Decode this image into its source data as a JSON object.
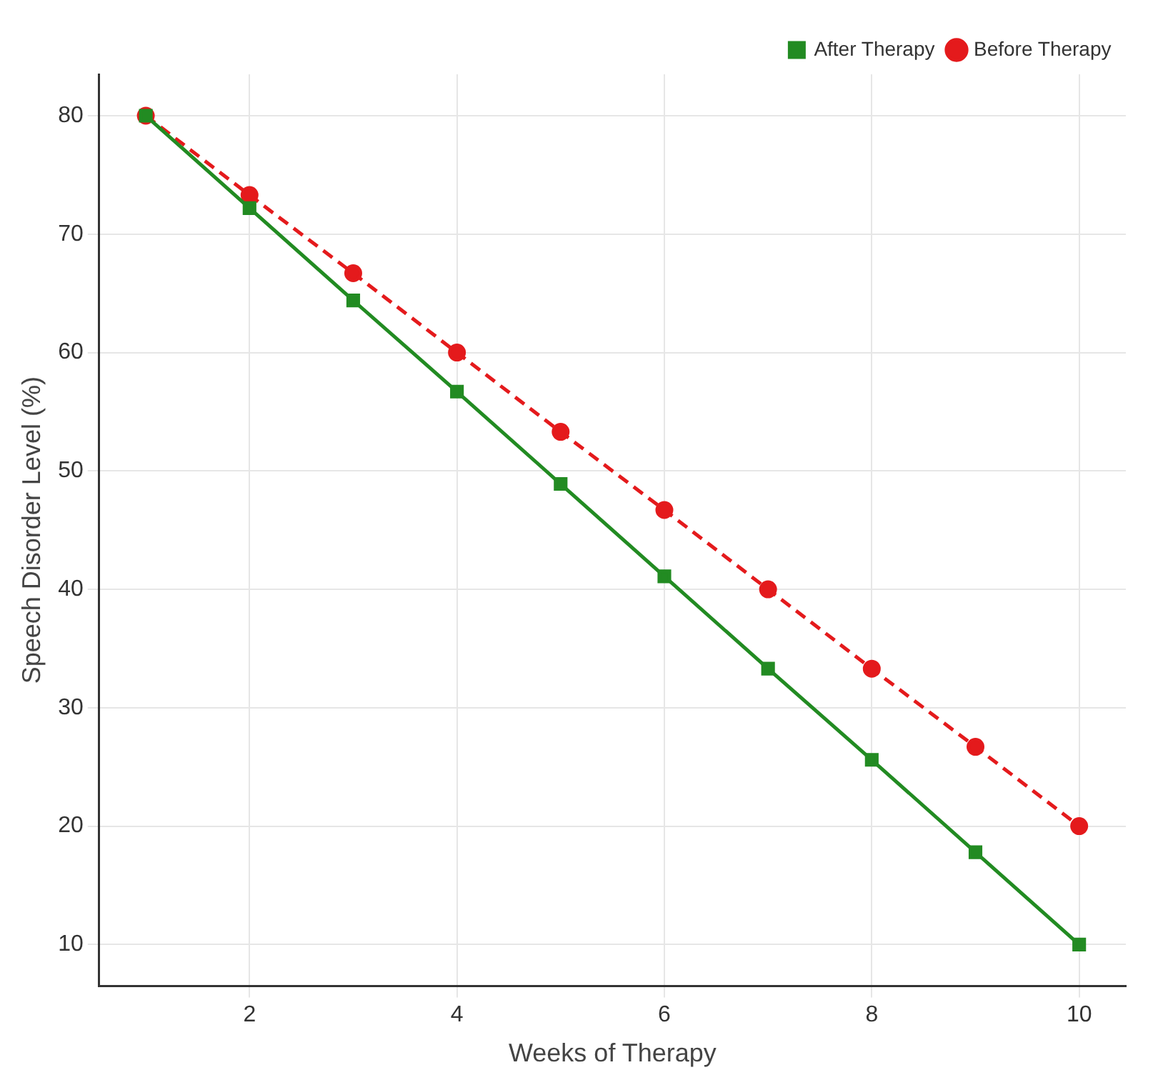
{
  "chart_data": {
    "type": "line",
    "xlabel": "Weeks of Therapy",
    "ylabel": "Speech Disorder Level (%)",
    "x": [
      1,
      2,
      3,
      4,
      5,
      6,
      7,
      8,
      9,
      10
    ],
    "series": [
      {
        "name": "Before Therapy",
        "color": "#e41a1c",
        "marker": "circle",
        "line_style": "dashed",
        "values": [
          80,
          73.3,
          66.7,
          60,
          53.3,
          46.7,
          40,
          33.3,
          26.7,
          20
        ]
      },
      {
        "name": "After Therapy",
        "color": "#228b22",
        "marker": "square",
        "line_style": "solid",
        "values": [
          80,
          72.2,
          64.4,
          56.7,
          48.9,
          41.1,
          33.3,
          25.6,
          17.8,
          10
        ]
      }
    ],
    "xlim": [
      0.55,
      10.45
    ],
    "xticks": [
      2,
      4,
      6,
      8,
      10
    ],
    "ylim": [
      6.5,
      83.5
    ],
    "yticks": [
      10,
      20,
      30,
      40,
      50,
      60,
      70,
      80
    ],
    "grid": true,
    "legend": "top right"
  }
}
